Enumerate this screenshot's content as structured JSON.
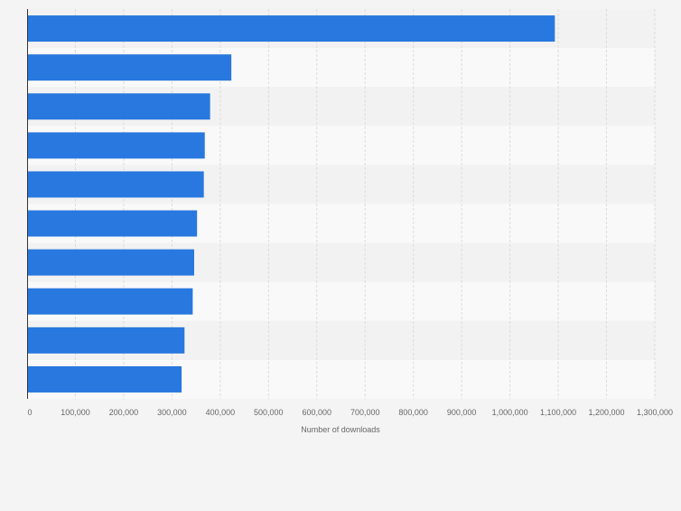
{
  "chart_data": {
    "type": "bar",
    "orientation": "horizontal",
    "title": "",
    "xlabel": "Number of downloads",
    "ylabel": "",
    "xlim": [
      0,
      1300000
    ],
    "tick_values": [
      0,
      100000,
      200000,
      300000,
      400000,
      500000,
      600000,
      700000,
      800000,
      900000,
      1000000,
      1100000,
      1200000,
      1300000
    ],
    "tick_labels": [
      "0",
      "100,000",
      "200,000",
      "300,000",
      "400,000",
      "500,000",
      "600,000",
      "700,000",
      "800,000",
      "900,000",
      "1,000,000",
      "1,100,000",
      "1,200,000",
      "1,300,000"
    ],
    "categories": [
      "",
      "",
      "",
      "",
      "",
      "",
      "",
      "",
      "",
      ""
    ],
    "values": [
      1093000,
      423000,
      379000,
      368000,
      366000,
      352000,
      346000,
      343000,
      326000,
      320000
    ],
    "grid": true,
    "legend": "none",
    "colors": {
      "bar": "#2878df",
      "band_light": "#f9f9f9",
      "band_dark": "#f2f2f2",
      "grid": "#dcdcdc",
      "axis": "#333333",
      "text": "#666666",
      "background": "#f4f4f4"
    }
  }
}
